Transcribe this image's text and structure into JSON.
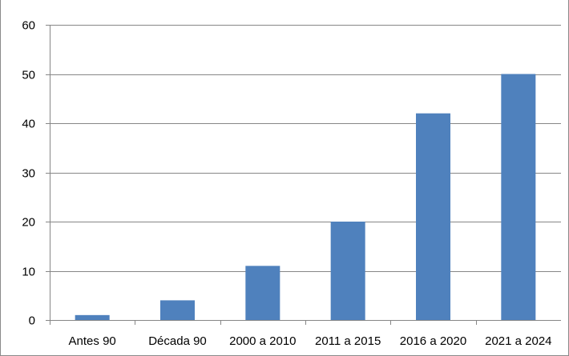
{
  "chart_data": {
    "type": "bar",
    "title": "",
    "xlabel": "",
    "ylabel": "",
    "categories": [
      "Antes 90",
      "Década 90",
      "2000 a 2010",
      "2011 a 2015",
      "2016 a 2020",
      "2021 a 2024"
    ],
    "values": [
      1,
      4,
      11,
      20,
      42,
      50
    ],
    "ylim": [
      0,
      60
    ],
    "yticks": [
      "0",
      "10",
      "20",
      "30",
      "40",
      "50",
      "60"
    ],
    "grid": true,
    "legend": "none",
    "colors": {
      "bar": "#4f81bd",
      "grid": "#868686",
      "axis": "#868686"
    }
  }
}
